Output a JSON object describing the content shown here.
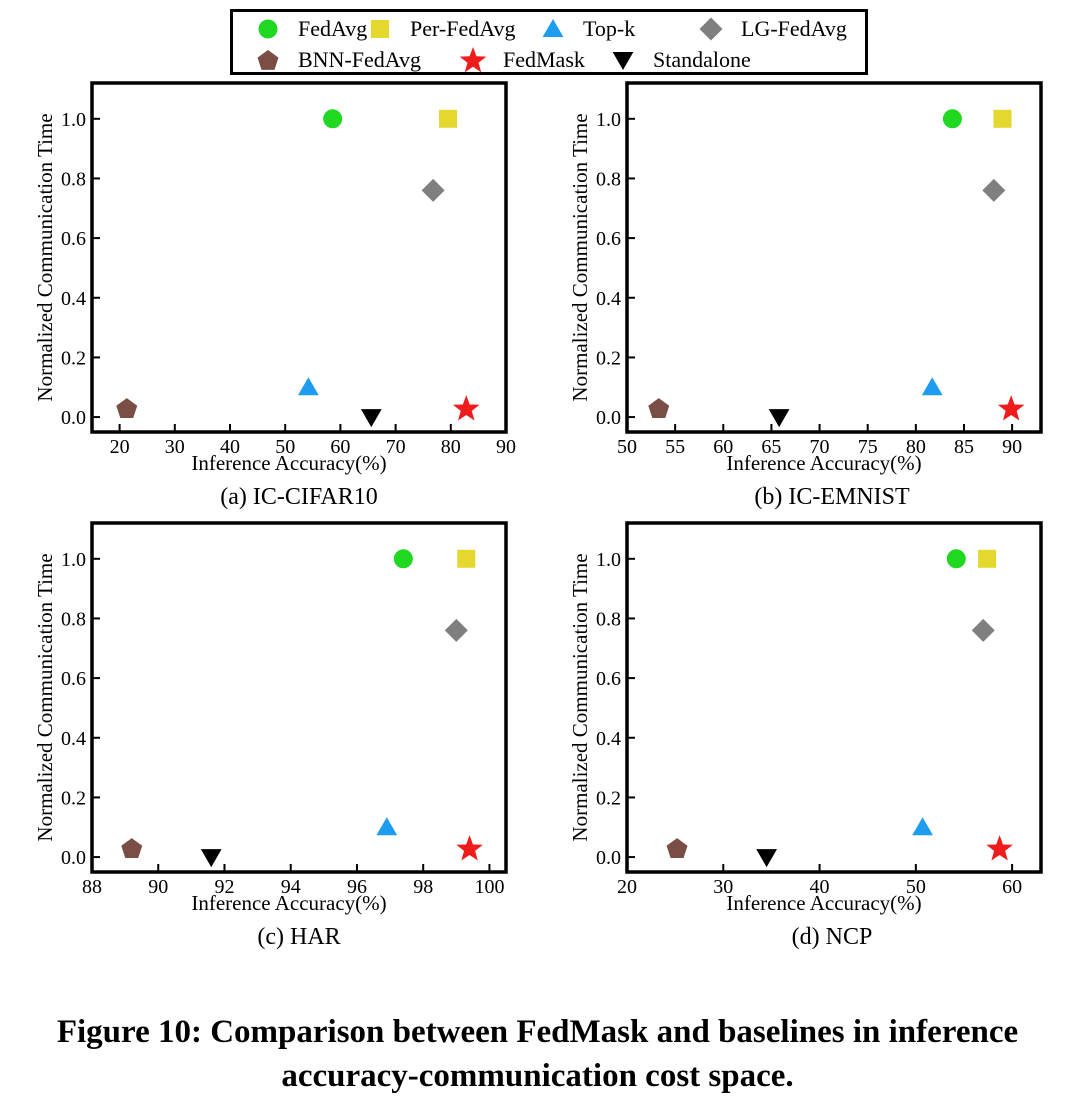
{
  "colors": {
    "FedAvg": "#1fd81f",
    "Per-FedAvg": "#e4d82e",
    "Top-k": "#1e9cf0",
    "LG-FedAvg": "#7f7f7f",
    "BNN-FedAvg": "#7a4e45",
    "FedMask": "#f01b1b",
    "Standalone": "#000000"
  },
  "legend": [
    {
      "name": "FedAvg",
      "marker": "circle"
    },
    {
      "name": "Per-FedAvg",
      "marker": "square"
    },
    {
      "name": "Top-k",
      "marker": "triangle-up"
    },
    {
      "name": "LG-FedAvg",
      "marker": "diamond"
    },
    {
      "name": "BNN-FedAvg",
      "marker": "pentagon"
    },
    {
      "name": "FedMask",
      "marker": "star"
    },
    {
      "name": "Standalone",
      "marker": "triangle-down"
    }
  ],
  "chart_data": [
    {
      "type": "scatter",
      "caption": "(a) IC-CIFAR10",
      "xlabel": "Inference Accuracy(%)",
      "ylabel": "Normalized Communication Time",
      "xlim": [
        15,
        90
      ],
      "ylim": [
        -0.05,
        1.12
      ],
      "xticks": [
        20,
        30,
        40,
        50,
        60,
        70,
        80,
        90
      ],
      "yticks": [
        0.0,
        0.2,
        0.4,
        0.6,
        0.8,
        1.0
      ],
      "points": [
        {
          "series": "FedAvg",
          "x": 58.6,
          "y": 1.0
        },
        {
          "series": "Per-FedAvg",
          "x": 79.5,
          "y": 1.0
        },
        {
          "series": "LG-FedAvg",
          "x": 76.8,
          "y": 0.76
        },
        {
          "series": "Top-k",
          "x": 54.2,
          "y": 0.1
        },
        {
          "series": "BNN-FedAvg",
          "x": 21.3,
          "y": 0.03
        },
        {
          "series": "Standalone",
          "x": 65.6,
          "y": 0.0
        },
        {
          "series": "FedMask",
          "x": 82.8,
          "y": 0.03
        }
      ]
    },
    {
      "type": "scatter",
      "caption": "(b) IC-EMNIST",
      "xlabel": "Inference Accuracy(%)",
      "ylabel": "Normalized Communication Time",
      "xlim": [
        50,
        93
      ],
      "ylim": [
        -0.05,
        1.12
      ],
      "xticks": [
        50,
        55,
        60,
        65,
        70,
        75,
        80,
        85,
        90
      ],
      "yticks": [
        0.0,
        0.2,
        0.4,
        0.6,
        0.8,
        1.0
      ],
      "points": [
        {
          "series": "FedAvg",
          "x": 83.8,
          "y": 1.0
        },
        {
          "series": "Per-FedAvg",
          "x": 89.0,
          "y": 1.0
        },
        {
          "series": "LG-FedAvg",
          "x": 88.1,
          "y": 0.76
        },
        {
          "series": "Top-k",
          "x": 81.7,
          "y": 0.1
        },
        {
          "series": "BNN-FedAvg",
          "x": 53.3,
          "y": 0.03
        },
        {
          "series": "Standalone",
          "x": 65.8,
          "y": 0.0
        },
        {
          "series": "FedMask",
          "x": 89.9,
          "y": 0.03
        }
      ]
    },
    {
      "type": "scatter",
      "caption": "(c) HAR",
      "xlabel": "Inference Accuracy(%)",
      "ylabel": "Normalized Communication Time",
      "xlim": [
        88,
        100.5
      ],
      "ylim": [
        -0.05,
        1.12
      ],
      "xticks": [
        88,
        90,
        92,
        94,
        96,
        98,
        100
      ],
      "yticks": [
        0.0,
        0.2,
        0.4,
        0.6,
        0.8,
        1.0
      ],
      "points": [
        {
          "series": "FedAvg",
          "x": 97.4,
          "y": 1.0
        },
        {
          "series": "Per-FedAvg",
          "x": 99.3,
          "y": 1.0
        },
        {
          "series": "LG-FedAvg",
          "x": 99.0,
          "y": 0.76
        },
        {
          "series": "Top-k",
          "x": 96.9,
          "y": 0.1
        },
        {
          "series": "BNN-FedAvg",
          "x": 89.2,
          "y": 0.03
        },
        {
          "series": "Standalone",
          "x": 91.6,
          "y": 0.0
        },
        {
          "series": "FedMask",
          "x": 99.4,
          "y": 0.03
        }
      ]
    },
    {
      "type": "scatter",
      "caption": "(d) NCP",
      "xlabel": "Inference Accuracy(%)",
      "ylabel": "Normalized Communication Time",
      "xlim": [
        20,
        63
      ],
      "ylim": [
        -0.05,
        1.12
      ],
      "xticks": [
        20,
        30,
        40,
        50,
        60
      ],
      "yticks": [
        0.0,
        0.2,
        0.4,
        0.6,
        0.8,
        1.0
      ],
      "points": [
        {
          "series": "FedAvg",
          "x": 54.2,
          "y": 1.0
        },
        {
          "series": "Per-FedAvg",
          "x": 57.4,
          "y": 1.0
        },
        {
          "series": "LG-FedAvg",
          "x": 57.0,
          "y": 0.76
        },
        {
          "series": "Top-k",
          "x": 50.7,
          "y": 0.1
        },
        {
          "series": "BNN-FedAvg",
          "x": 25.2,
          "y": 0.03
        },
        {
          "series": "Standalone",
          "x": 34.5,
          "y": 0.0
        },
        {
          "series": "FedMask",
          "x": 58.7,
          "y": 0.03
        }
      ]
    }
  ],
  "figure_caption": "Figure 10: Comparison between FedMask and baselines in inference accuracy-communication cost space."
}
